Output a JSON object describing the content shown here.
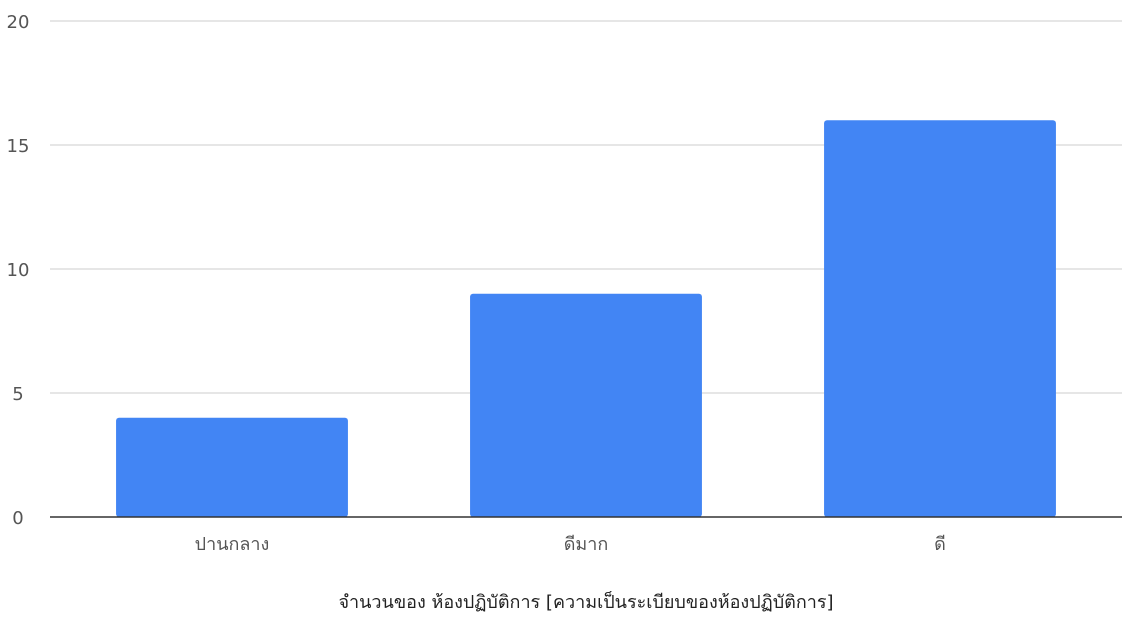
{
  "chart_data": {
    "type": "bar",
    "categories": [
      "ปานกลาง",
      "ดีมาก",
      "ดี"
    ],
    "values": [
      4,
      9,
      16
    ],
    "title": "",
    "xlabel": "จำนวนของ ห้องปฏิบัติการ [ความเป็นระเบียบของห้องปฏิบัติการ]",
    "ylabel": "",
    "ylim": [
      0,
      20
    ],
    "yticks": [
      "0",
      "5",
      "10",
      "15",
      "20"
    ],
    "grid": true,
    "legend": "none",
    "bar_color": "#4285f4",
    "grid_color": "#cccccc",
    "axis_color": "#333333"
  }
}
